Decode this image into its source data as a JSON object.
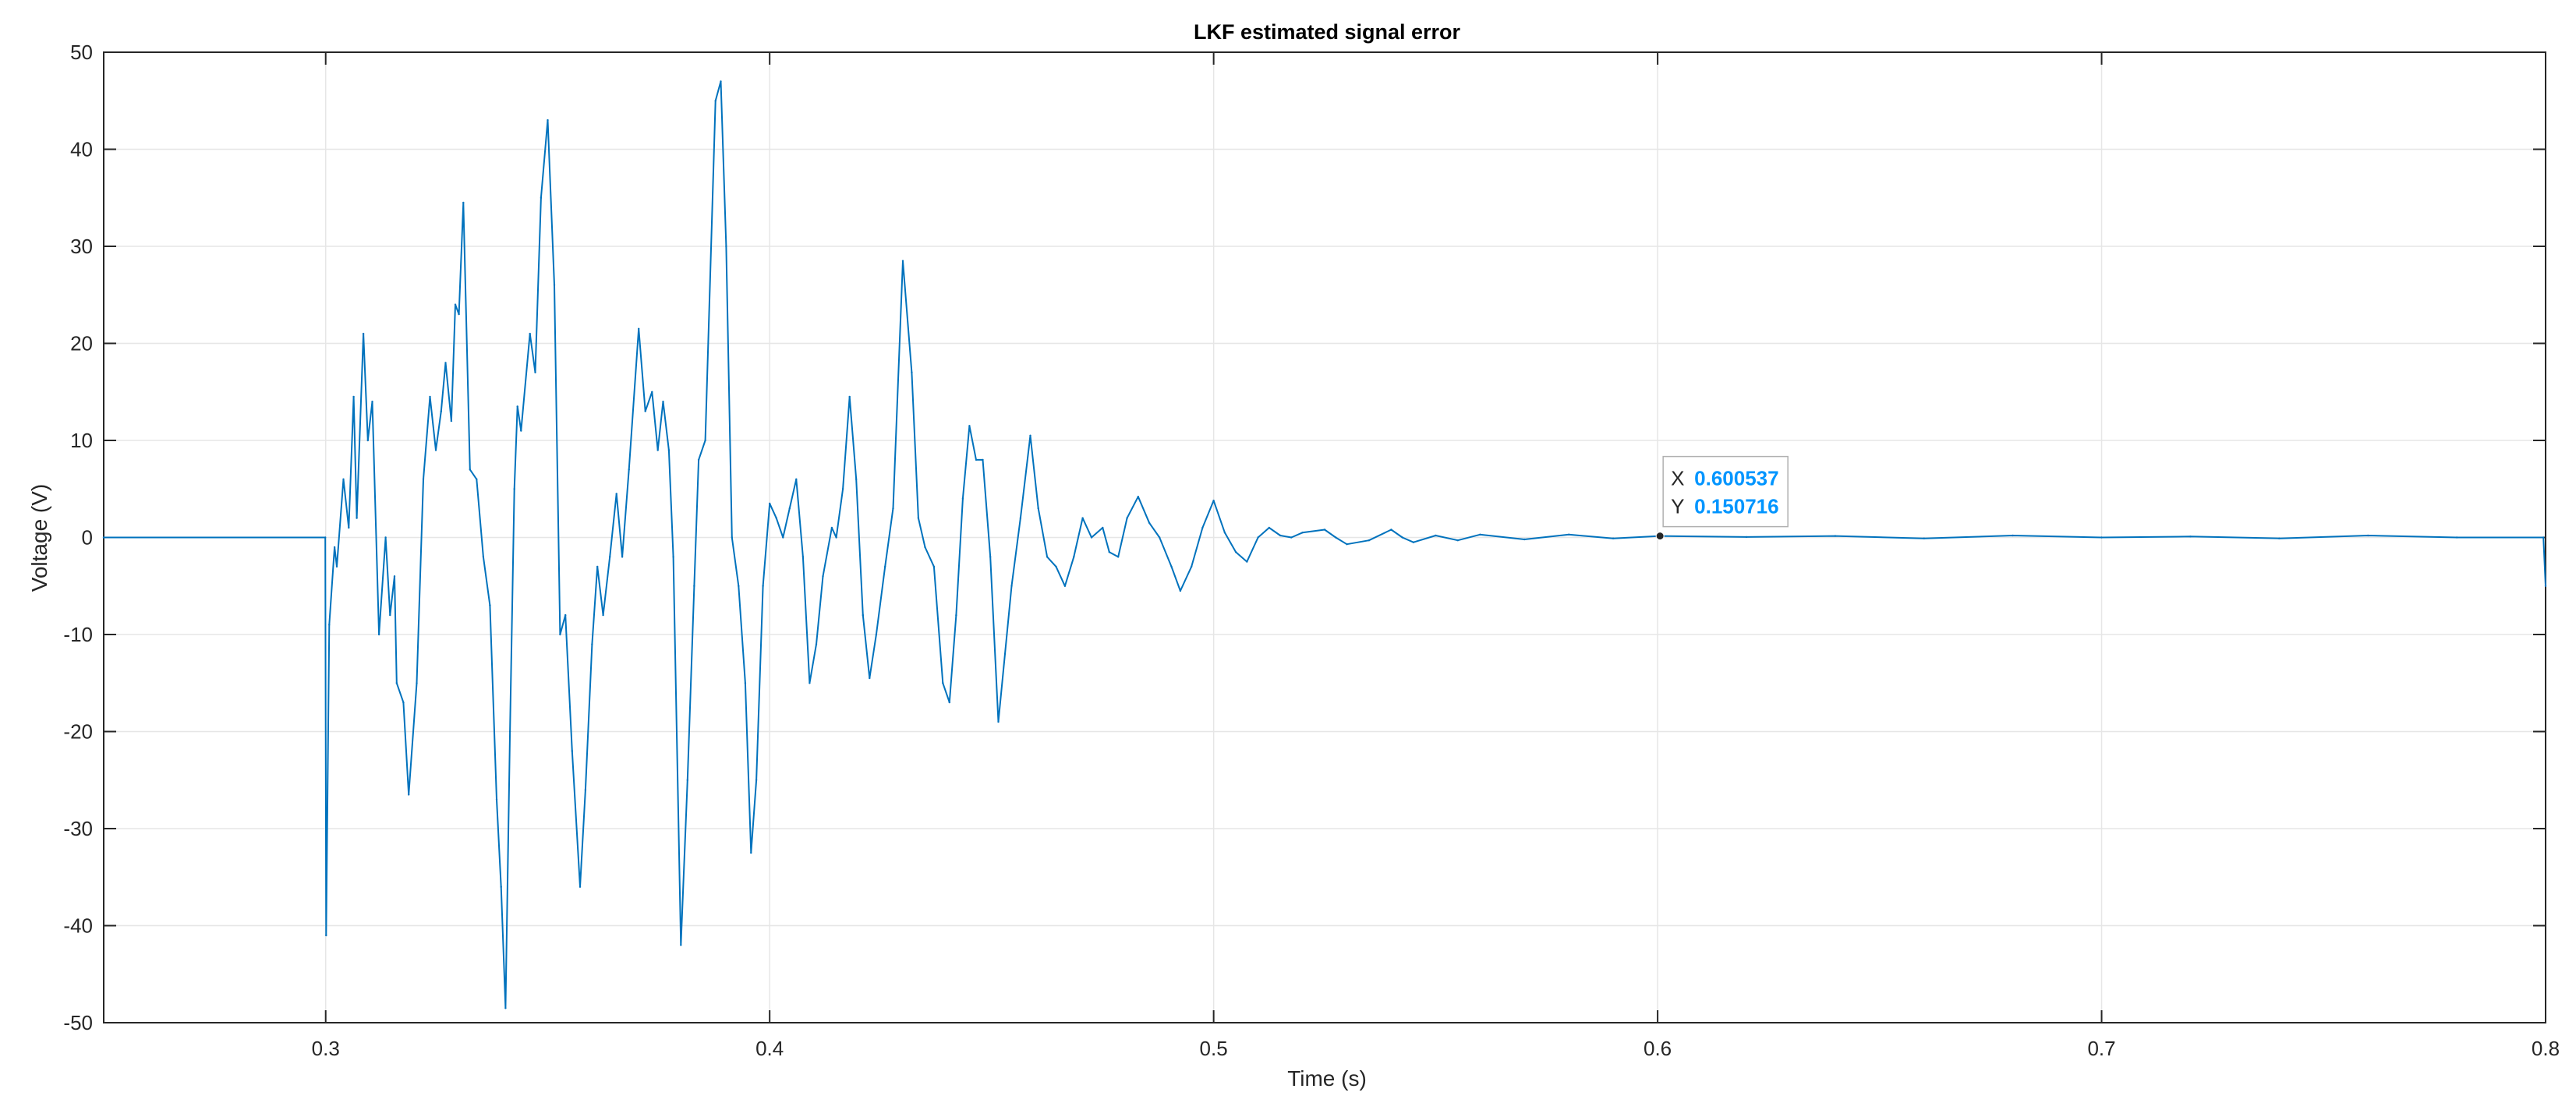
{
  "chart_data": {
    "type": "line",
    "title": "LKF estimated signal error",
    "xlabel": "Time (s)",
    "ylabel": "Voltage (V)",
    "xlim": [
      0.25,
      0.8
    ],
    "ylim": [
      -50,
      50
    ],
    "xticks": [
      0.3,
      0.4,
      0.5,
      0.6,
      0.7,
      0.8
    ],
    "xtick_labels": [
      "0.3",
      "0.4",
      "0.5",
      "0.6",
      "0.7",
      "0.8"
    ],
    "yticks": [
      -50,
      -40,
      -30,
      -20,
      -10,
      0,
      10,
      20,
      30,
      40,
      50
    ],
    "ytick_labels": [
      "-50",
      "-40",
      "-30",
      "-20",
      "-10",
      "0",
      "10",
      "20",
      "30",
      "40",
      "50"
    ],
    "grid": true,
    "series": [
      {
        "color": "#0072BD",
        "points": [
          [
            0.25,
            0
          ],
          [
            0.2999,
            0
          ],
          [
            0.3001,
            -41
          ],
          [
            0.3008,
            -9
          ],
          [
            0.302,
            -1
          ],
          [
            0.3025,
            -3
          ],
          [
            0.304,
            6
          ],
          [
            0.3052,
            1
          ],
          [
            0.3063,
            14.5
          ],
          [
            0.307,
            2
          ],
          [
            0.3085,
            21
          ],
          [
            0.3095,
            10
          ],
          [
            0.3105,
            14
          ],
          [
            0.312,
            -10
          ],
          [
            0.3135,
            0
          ],
          [
            0.3145,
            -8
          ],
          [
            0.3155,
            -4
          ],
          [
            0.316,
            -15
          ],
          [
            0.3175,
            -17
          ],
          [
            0.3187,
            -26.5
          ],
          [
            0.3205,
            -15
          ],
          [
            0.322,
            6
          ],
          [
            0.3235,
            14.5
          ],
          [
            0.3248,
            9
          ],
          [
            0.326,
            13
          ],
          [
            0.327,
            18
          ],
          [
            0.3283,
            12
          ],
          [
            0.3292,
            24
          ],
          [
            0.33,
            23
          ],
          [
            0.331,
            34.5
          ],
          [
            0.3325,
            7
          ],
          [
            0.334,
            6
          ],
          [
            0.3355,
            -2
          ],
          [
            0.337,
            -7
          ],
          [
            0.3385,
            -27
          ],
          [
            0.3395,
            -36
          ],
          [
            0.3405,
            -48.5
          ],
          [
            0.3415,
            -20
          ],
          [
            0.3425,
            5
          ],
          [
            0.3432,
            13.5
          ],
          [
            0.344,
            11
          ],
          [
            0.346,
            21
          ],
          [
            0.3472,
            17
          ],
          [
            0.3485,
            35
          ],
          [
            0.35,
            43
          ],
          [
            0.3515,
            26
          ],
          [
            0.3528,
            -10
          ],
          [
            0.354,
            -8
          ],
          [
            0.3555,
            -22
          ],
          [
            0.3573,
            -36
          ],
          [
            0.3585,
            -26
          ],
          [
            0.36,
            -11
          ],
          [
            0.3612,
            -3
          ],
          [
            0.3625,
            -8
          ],
          [
            0.364,
            -2
          ],
          [
            0.3655,
            4.5
          ],
          [
            0.3668,
            -2
          ],
          [
            0.3683,
            7
          ],
          [
            0.3705,
            21.5
          ],
          [
            0.372,
            13
          ],
          [
            0.3735,
            15
          ],
          [
            0.3748,
            9
          ],
          [
            0.376,
            14
          ],
          [
            0.3773,
            9
          ],
          [
            0.3783,
            -2
          ],
          [
            0.38,
            -42
          ],
          [
            0.3815,
            -25
          ],
          [
            0.383,
            -5
          ],
          [
            0.384,
            8
          ],
          [
            0.3855,
            10
          ],
          [
            0.3878,
            45
          ],
          [
            0.389,
            47
          ],
          [
            0.3902,
            30
          ],
          [
            0.3915,
            0
          ],
          [
            0.393,
            -5
          ],
          [
            0.3945,
            -15
          ],
          [
            0.3958,
            -32.5
          ],
          [
            0.397,
            -25
          ],
          [
            0.3985,
            -5
          ],
          [
            0.4,
            3.5
          ],
          [
            0.4015,
            2
          ],
          [
            0.403,
            0
          ],
          [
            0.4045,
            3
          ],
          [
            0.406,
            6
          ],
          [
            0.4075,
            -2
          ],
          [
            0.409,
            -15
          ],
          [
            0.4105,
            -11
          ],
          [
            0.412,
            -4
          ],
          [
            0.414,
            1
          ],
          [
            0.415,
            0
          ],
          [
            0.4165,
            5
          ],
          [
            0.418,
            14.5
          ],
          [
            0.4195,
            6
          ],
          [
            0.421,
            -8
          ],
          [
            0.4225,
            -14.5
          ],
          [
            0.424,
            -10
          ],
          [
            0.426,
            -3
          ],
          [
            0.4278,
            3
          ],
          [
            0.43,
            28.5
          ],
          [
            0.432,
            17
          ],
          [
            0.4335,
            2
          ],
          [
            0.435,
            -1
          ],
          [
            0.437,
            -3
          ],
          [
            0.439,
            -15
          ],
          [
            0.4405,
            -17
          ],
          [
            0.442,
            -8
          ],
          [
            0.4435,
            4
          ],
          [
            0.445,
            11.5
          ],
          [
            0.4465,
            8
          ],
          [
            0.448,
            8
          ],
          [
            0.4497,
            -2
          ],
          [
            0.4515,
            -19
          ],
          [
            0.453,
            -12
          ],
          [
            0.4545,
            -5
          ],
          [
            0.4565,
            2
          ],
          [
            0.4587,
            10.5
          ],
          [
            0.4605,
            3
          ],
          [
            0.4625,
            -2
          ],
          [
            0.4645,
            -3
          ],
          [
            0.4665,
            -5
          ],
          [
            0.4685,
            -2
          ],
          [
            0.4705,
            2
          ],
          [
            0.4725,
            0
          ],
          [
            0.475,
            1
          ],
          [
            0.4765,
            -1.5
          ],
          [
            0.4785,
            -2
          ],
          [
            0.4805,
            2
          ],
          [
            0.483,
            4.2
          ],
          [
            0.4855,
            1.5
          ],
          [
            0.4878,
            0
          ],
          [
            0.4905,
            -3
          ],
          [
            0.4925,
            -5.5
          ],
          [
            0.495,
            -3
          ],
          [
            0.4975,
            1
          ],
          [
            0.5,
            3.8
          ],
          [
            0.5025,
            0.5
          ],
          [
            0.505,
            -1.5
          ],
          [
            0.5075,
            -2.5
          ],
          [
            0.51,
            0
          ],
          [
            0.5125,
            1
          ],
          [
            0.515,
            0.2
          ],
          [
            0.5175,
            0
          ],
          [
            0.52,
            0.5
          ],
          [
            0.525,
            0.8
          ],
          [
            0.5275,
            0
          ],
          [
            0.53,
            -0.7
          ],
          [
            0.535,
            -0.3
          ],
          [
            0.54,
            0.8
          ],
          [
            0.5425,
            0
          ],
          [
            0.545,
            -0.5
          ],
          [
            0.55,
            0.2
          ],
          [
            0.555,
            -0.3
          ],
          [
            0.56,
            0.3
          ],
          [
            0.57,
            -0.2
          ],
          [
            0.58,
            0.3
          ],
          [
            0.59,
            -0.1
          ],
          [
            0.600537,
            0.150716
          ],
          [
            0.62,
            0.05
          ],
          [
            0.64,
            0.15
          ],
          [
            0.66,
            -0.1
          ],
          [
            0.68,
            0.2
          ],
          [
            0.7,
            0
          ],
          [
            0.72,
            0.1
          ],
          [
            0.74,
            -0.1
          ],
          [
            0.76,
            0.2
          ],
          [
            0.78,
            0
          ],
          [
            0.7995,
            0
          ],
          [
            0.8,
            -5
          ]
        ]
      }
    ],
    "datatip": {
      "x_label": "X",
      "y_label": "Y",
      "x_value": "0.600537",
      "y_value": "0.150716",
      "x": 0.600537,
      "y": 0.150716
    }
  }
}
